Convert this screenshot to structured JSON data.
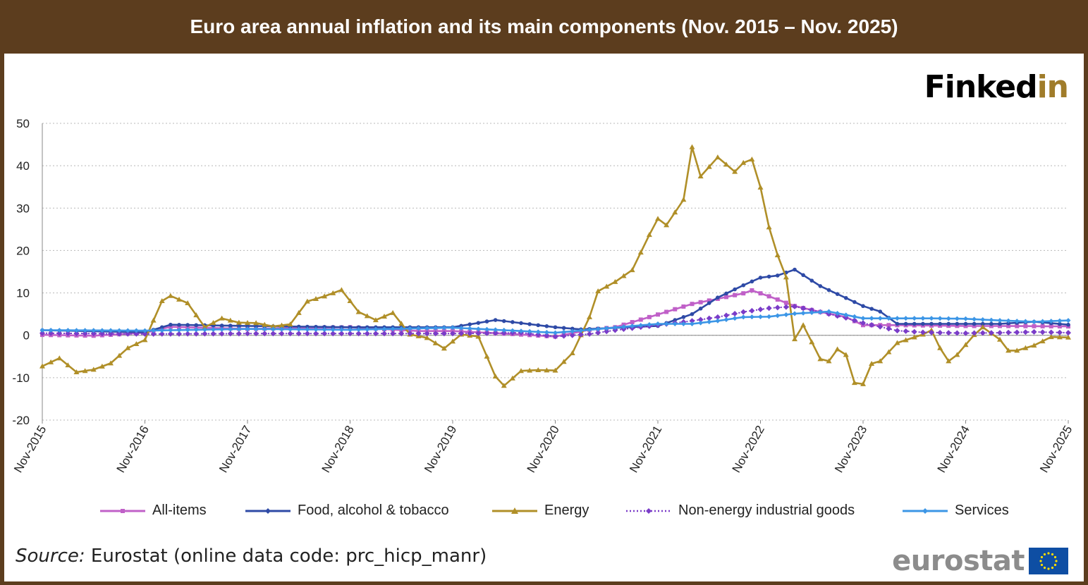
{
  "header": {
    "title": "Euro area annual inflation and its main components (Nov. 2015 – Nov. 2025)"
  },
  "brand": {
    "part1": "Finked",
    "part2": "in"
  },
  "source": {
    "label": "Source:",
    "text": " Eurostat (online data code: prc_hicp_manr)"
  },
  "logo": {
    "text": "eurostat",
    "flag_icon": "eu-flag-icon"
  },
  "colors": {
    "header_bg": "#5c3d1e",
    "all_items": "#c060c8",
    "food": "#2e4aa6",
    "energy": "#b08f28",
    "neig": "#7a3cc8",
    "services": "#3c96e6"
  },
  "chart_data": {
    "type": "line",
    "title": "Euro area annual inflation and its main components (Nov. 2015 – Nov. 2025)",
    "xlabel": "",
    "ylabel": "",
    "ylim": [
      -20,
      50
    ],
    "yticks": [
      -20,
      -10,
      0,
      10,
      20,
      30,
      40,
      50
    ],
    "x_start": "Nov-2015",
    "x_end": "Nov-2025",
    "x_ticks": [
      "Nov-2015",
      "Nov-2016",
      "Nov-2017",
      "Nov-2018",
      "Nov-2019",
      "Nov-2020",
      "Nov-2021",
      "Nov-2022",
      "Nov-2023",
      "Nov-2024",
      "Nov-2025"
    ],
    "grid": "horizontal dotted",
    "legend": "bottom",
    "series": [
      {
        "name": "All-items",
        "key": "all_items",
        "marker": "square",
        "points": [
          [
            "Nov-2015",
            0.1
          ],
          [
            "May-2016",
            -0.1
          ],
          [
            "Nov-2016",
            0.6
          ],
          [
            "Feb-2017",
            2.0
          ],
          [
            "Nov-2017",
            1.5
          ],
          [
            "Nov-2018",
            1.9
          ],
          [
            "Jul-2019",
            1.0
          ],
          [
            "Nov-2019",
            1.0
          ],
          [
            "Jun-2020",
            0.3
          ],
          [
            "Nov-2020",
            -0.3
          ],
          [
            "Mar-2021",
            1.3
          ],
          [
            "Jun-2021",
            1.9
          ],
          [
            "Nov-2021",
            4.9
          ],
          [
            "Mar-2022",
            7.4
          ],
          [
            "Jun-2022",
            8.6
          ],
          [
            "Sep-2022",
            9.9
          ],
          [
            "Oct-2022",
            10.6
          ],
          [
            "Dec-2022",
            9.2
          ],
          [
            "Mar-2023",
            6.9
          ],
          [
            "Jun-2023",
            5.5
          ],
          [
            "Sep-2023",
            4.3
          ],
          [
            "Nov-2023",
            2.4
          ],
          [
            "Mar-2024",
            2.4
          ],
          [
            "Nov-2024",
            2.2
          ],
          [
            "Mar-2025",
            2.2
          ],
          [
            "Nov-2025",
            2.1
          ]
        ]
      },
      {
        "name": "Food, alcohol & tobacco",
        "key": "food",
        "marker": "circle",
        "points": [
          [
            "Nov-2015",
            1.2
          ],
          [
            "Nov-2016",
            0.7
          ],
          [
            "Feb-2017",
            2.5
          ],
          [
            "Nov-2017",
            2.2
          ],
          [
            "Nov-2018",
            1.9
          ],
          [
            "Nov-2019",
            1.9
          ],
          [
            "Apr-2020",
            3.6
          ],
          [
            "Nov-2020",
            1.9
          ],
          [
            "Feb-2021",
            1.4
          ],
          [
            "Nov-2021",
            2.2
          ],
          [
            "Mar-2022",
            5.0
          ],
          [
            "Jun-2022",
            8.9
          ],
          [
            "Sep-2022",
            11.8
          ],
          [
            "Nov-2022",
            13.6
          ],
          [
            "Jan-2023",
            14.1
          ],
          [
            "Mar-2023",
            15.5
          ],
          [
            "Jun-2023",
            11.6
          ],
          [
            "Sep-2023",
            8.8
          ],
          [
            "Nov-2023",
            6.9
          ],
          [
            "Jan-2024",
            5.6
          ],
          [
            "Mar-2024",
            2.7
          ],
          [
            "Nov-2024",
            2.7
          ],
          [
            "Mar-2025",
            2.7
          ],
          [
            "Jul-2025",
            3.2
          ],
          [
            "Nov-2025",
            2.5
          ]
        ]
      },
      {
        "name": "Energy",
        "key": "energy",
        "marker": "triangle",
        "points": [
          [
            "Nov-2015",
            -7.3
          ],
          [
            "Jan-2016",
            -5.4
          ],
          [
            "Mar-2016",
            -8.7
          ],
          [
            "May-2016",
            -8.1
          ],
          [
            "Jul-2016",
            -6.6
          ],
          [
            "Sep-2016",
            -3.0
          ],
          [
            "Nov-2016",
            -1.1
          ],
          [
            "Jan-2017",
            8.1
          ],
          [
            "Feb-2017",
            9.3
          ],
          [
            "Apr-2017",
            7.6
          ],
          [
            "Jun-2017",
            1.9
          ],
          [
            "Aug-2017",
            4.0
          ],
          [
            "Oct-2017",
            3.0
          ],
          [
            "Dec-2017",
            2.9
          ],
          [
            "Feb-2018",
            2.1
          ],
          [
            "Apr-2018",
            2.6
          ],
          [
            "Jun-2018",
            8.0
          ],
          [
            "Aug-2018",
            9.2
          ],
          [
            "Oct-2018",
            10.7
          ],
          [
            "Dec-2018",
            5.5
          ],
          [
            "Feb-2019",
            3.6
          ],
          [
            "Apr-2019",
            5.3
          ],
          [
            "Jun-2019",
            0.2
          ],
          [
            "Aug-2019",
            -0.6
          ],
          [
            "Oct-2019",
            -3.1
          ],
          [
            "Dec-2019",
            0.2
          ],
          [
            "Feb-2020",
            -0.3
          ],
          [
            "Apr-2020",
            -9.7
          ],
          [
            "May-2020",
            -11.9
          ],
          [
            "Jul-2020",
            -8.4
          ],
          [
            "Sep-2020",
            -8.2
          ],
          [
            "Nov-2020",
            -8.3
          ],
          [
            "Jan-2021",
            -4.2
          ],
          [
            "Mar-2021",
            4.3
          ],
          [
            "Apr-2021",
            10.4
          ],
          [
            "Jun-2021",
            12.6
          ],
          [
            "Aug-2021",
            15.4
          ],
          [
            "Oct-2021",
            23.7
          ],
          [
            "Nov-2021",
            27.5
          ],
          [
            "Dec-2021",
            26.0
          ],
          [
            "Feb-2022",
            32.0
          ],
          [
            "Mar-2022",
            44.4
          ],
          [
            "Apr-2022",
            37.5
          ],
          [
            "Jun-2022",
            42.0
          ],
          [
            "Aug-2022",
            38.6
          ],
          [
            "Sep-2022",
            40.7
          ],
          [
            "Oct-2022",
            41.5
          ],
          [
            "Nov-2022",
            34.9
          ],
          [
            "Dec-2022",
            25.5
          ],
          [
            "Jan-2023",
            18.9
          ],
          [
            "Feb-2023",
            13.7
          ],
          [
            "Mar-2023",
            -0.9
          ],
          [
            "Apr-2023",
            2.4
          ],
          [
            "Jun-2023",
            -5.6
          ],
          [
            "Jul-2023",
            -6.1
          ],
          [
            "Aug-2023",
            -3.3
          ],
          [
            "Sep-2023",
            -4.6
          ],
          [
            "Oct-2023",
            -11.2
          ],
          [
            "Nov-2023",
            -11.5
          ],
          [
            "Dec-2023",
            -6.7
          ],
          [
            "Jan-2024",
            -6.1
          ],
          [
            "Mar-2024",
            -1.8
          ],
          [
            "Jun-2024",
            0.2
          ],
          [
            "Jul-2024",
            1.2
          ],
          [
            "Aug-2024",
            -3.0
          ],
          [
            "Sep-2024",
            -6.1
          ],
          [
            "Oct-2024",
            -4.6
          ],
          [
            "Dec-2024",
            0.1
          ],
          [
            "Jan-2025",
            1.9
          ],
          [
            "Mar-2025",
            -1.0
          ],
          [
            "Apr-2025",
            -3.6
          ],
          [
            "May-2025",
            -3.6
          ],
          [
            "Jul-2025",
            -2.4
          ],
          [
            "Sep-2025",
            -0.4
          ],
          [
            "Nov-2025",
            -0.5
          ]
        ]
      },
      {
        "name": "Non-energy industrial goods",
        "key": "neig",
        "marker": "diamond",
        "dashed": true,
        "points": [
          [
            "Nov-2015",
            0.5
          ],
          [
            "Nov-2016",
            0.3
          ],
          [
            "Nov-2017",
            0.4
          ],
          [
            "Nov-2018",
            0.4
          ],
          [
            "Nov-2019",
            0.4
          ],
          [
            "Jul-2020",
            0.6
          ],
          [
            "Nov-2020",
            -0.3
          ],
          [
            "Mar-2021",
            0.3
          ],
          [
            "Jun-2021",
            1.2
          ],
          [
            "Nov-2021",
            2.4
          ],
          [
            "Mar-2022",
            3.4
          ],
          [
            "Jun-2022",
            4.3
          ],
          [
            "Sep-2022",
            5.5
          ],
          [
            "Dec-2022",
            6.4
          ],
          [
            "Mar-2023",
            6.8
          ],
          [
            "Jun-2023",
            5.5
          ],
          [
            "Sep-2023",
            4.1
          ],
          [
            "Nov-2023",
            2.9
          ],
          [
            "Mar-2024",
            1.1
          ],
          [
            "Jun-2024",
            0.7
          ],
          [
            "Nov-2024",
            0.5
          ],
          [
            "Mar-2025",
            0.6
          ],
          [
            "Jul-2025",
            0.8
          ],
          [
            "Nov-2025",
            0.6
          ]
        ]
      },
      {
        "name": "Services",
        "key": "services",
        "marker": "plus",
        "points": [
          [
            "Nov-2015",
            1.2
          ],
          [
            "Nov-2016",
            1.1
          ],
          [
            "Nov-2017",
            1.5
          ],
          [
            "Nov-2018",
            1.3
          ],
          [
            "Nov-2019",
            1.8
          ],
          [
            "Nov-2020",
            0.6
          ],
          [
            "Mar-2021",
            1.3
          ],
          [
            "Nov-2021",
            2.7
          ],
          [
            "Mar-2022",
            2.7
          ],
          [
            "Jun-2022",
            3.4
          ],
          [
            "Sep-2022",
            4.3
          ],
          [
            "Dec-2022",
            4.4
          ],
          [
            "Mar-2023",
            5.1
          ],
          [
            "Jul-2023",
            5.6
          ],
          [
            "Nov-2023",
            4.0
          ],
          [
            "Mar-2024",
            4.0
          ],
          [
            "Jul-2024",
            4.0
          ],
          [
            "Nov-2024",
            3.9
          ],
          [
            "Mar-2025",
            3.5
          ],
          [
            "Jul-2025",
            3.2
          ],
          [
            "Nov-2025",
            3.5
          ]
        ]
      }
    ]
  }
}
